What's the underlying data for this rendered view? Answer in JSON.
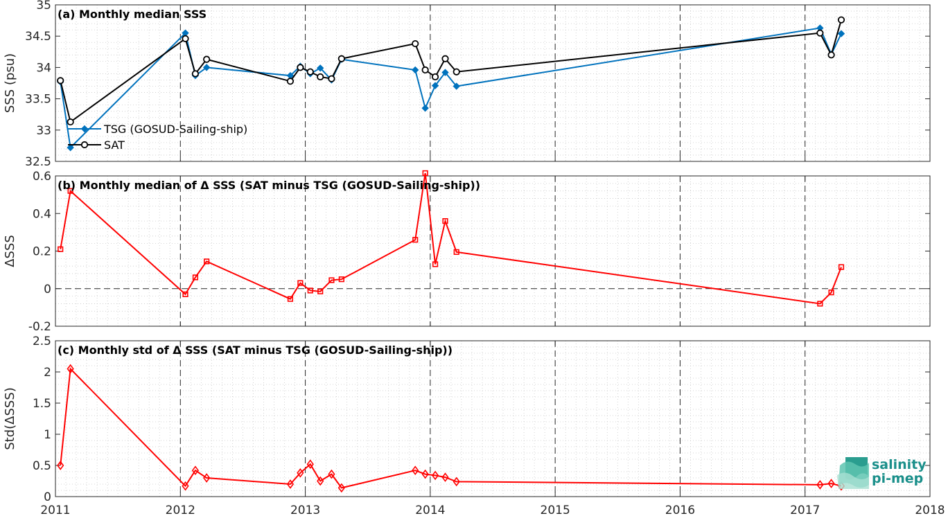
{
  "chart_data": [
    {
      "type": "line",
      "title": "(a) Monthly median SSS",
      "ylabel": "SSS (psu)",
      "xlim": [
        2011,
        2018
      ],
      "ylim": [
        32.5,
        35
      ],
      "x_ticks": [
        "2011",
        "2012",
        "2013",
        "2014",
        "2015",
        "2016",
        "2017",
        "2018"
      ],
      "y_ticks": [
        "32.5",
        "33",
        "33.5",
        "34",
        "34.5",
        "35"
      ],
      "grid": true,
      "legend_placement": "left",
      "x": [
        2011.04,
        2011.12,
        2012.04,
        2012.12,
        2012.21,
        2012.88,
        2012.96,
        2013.04,
        2013.12,
        2013.21,
        2013.29,
        2013.88,
        2013.96,
        2014.04,
        2014.12,
        2014.21,
        2017.12,
        2017.21,
        2017.29
      ],
      "series": [
        {
          "name": "TSG (GOSUD-Sailing-ship)",
          "color": "#0072bd",
          "marker": "diamond",
          "values": [
            33.77,
            32.72,
            34.55,
            33.87,
            34.0,
            33.87,
            34.02,
            33.9,
            33.99,
            33.8,
            34.13,
            33.96,
            33.35,
            33.71,
            33.92,
            33.7,
            34.63,
            34.21,
            34.54
          ]
        },
        {
          "name": "SAT",
          "color": "#000000",
          "marker": "circle",
          "values": [
            33.79,
            33.13,
            34.46,
            33.9,
            34.13,
            33.78,
            34.0,
            33.93,
            33.85,
            33.82,
            34.14,
            34.38,
            33.96,
            33.85,
            34.14,
            33.93,
            34.55,
            34.2,
            34.76
          ]
        }
      ],
      "legend_rows": [
        {
          "marker": "diamond",
          "color": "#0072bd"
        },
        {
          "marker": "circle",
          "color": "#000000"
        }
      ]
    },
    {
      "type": "line",
      "title": "(b) Monthly median of Δ SSS (SAT minus TSG (GOSUD-Sailing-ship))",
      "ylabel": "ΔSSS",
      "xlim": [
        2011,
        2018
      ],
      "ylim": [
        -0.2,
        0.6
      ],
      "x_ticks": [
        "2011",
        "2012",
        "2013",
        "2014",
        "2015",
        "2016",
        "2017",
        "2018"
      ],
      "y_ticks": [
        "-0.2",
        "0",
        "0.2",
        "0.4",
        "0.6"
      ],
      "grid": true,
      "zero_line": true,
      "x": [
        2011.04,
        2011.12,
        2012.04,
        2012.12,
        2012.21,
        2012.88,
        2012.96,
        2013.04,
        2013.12,
        2013.21,
        2013.29,
        2013.88,
        2013.96,
        2014.04,
        2014.12,
        2014.21,
        2017.12,
        2017.21,
        2017.29
      ],
      "series": [
        {
          "color": "#ff0000",
          "marker": "square",
          "values": [
            0.21,
            0.52,
            -0.03,
            0.06,
            0.145,
            -0.055,
            0.03,
            -0.01,
            -0.015,
            0.045,
            0.05,
            0.26,
            0.615,
            0.13,
            0.36,
            0.195,
            -0.08,
            -0.02,
            0.115
          ]
        }
      ]
    },
    {
      "type": "line",
      "title": "(c) Monthly std of Δ SSS (SAT minus TSG (GOSUD-Sailing-ship))",
      "ylabel": "Std(ΔSSS)",
      "xlim": [
        2011,
        2018
      ],
      "ylim": [
        0,
        2.5
      ],
      "x_ticks": [
        "2011",
        "2012",
        "2013",
        "2014",
        "2015",
        "2016",
        "2017",
        "2018"
      ],
      "y_ticks": [
        "0",
        "0.5",
        "1",
        "1.5",
        "2",
        "2.5"
      ],
      "grid": true,
      "x": [
        2011.04,
        2011.12,
        2012.04,
        2012.12,
        2012.21,
        2012.88,
        2012.96,
        2013.04,
        2013.12,
        2013.21,
        2013.29,
        2013.88,
        2013.96,
        2014.04,
        2014.12,
        2014.21,
        2017.12,
        2017.21,
        2017.29
      ],
      "series": [
        {
          "color": "#ff0000",
          "marker": "diamond",
          "values": [
            0.5,
            2.05,
            0.17,
            0.42,
            0.3,
            0.2,
            0.38,
            0.52,
            0.25,
            0.36,
            0.14,
            0.42,
            0.36,
            0.34,
            0.31,
            0.24,
            0.19,
            0.21,
            0.17
          ]
        }
      ]
    }
  ],
  "logo": {
    "line1": "salinity",
    "line2": "pi-mep"
  }
}
